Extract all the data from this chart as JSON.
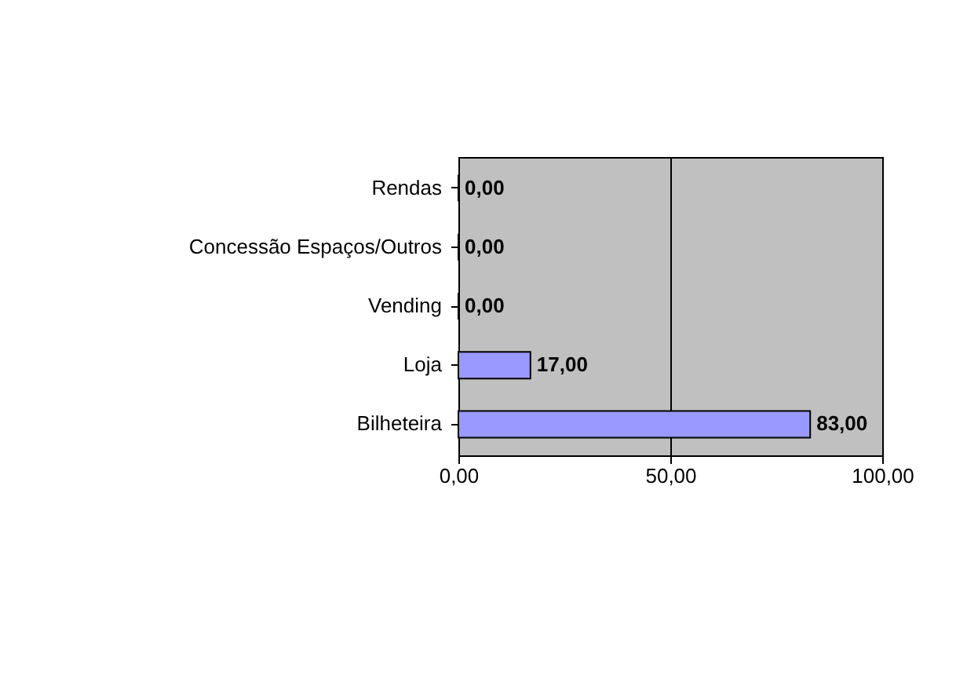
{
  "chart_data": {
    "type": "bar",
    "orientation": "horizontal",
    "categories": [
      "Rendas",
      "Concessão Espaços/Outros",
      "Vending",
      "Loja",
      "Bilheteira"
    ],
    "values": [
      0,
      0,
      0,
      17,
      83
    ],
    "value_labels": [
      "0,00",
      "0,00",
      "0,00",
      "17,00",
      "83,00"
    ],
    "color": "#9999ff",
    "xlim": [
      0,
      100
    ],
    "xticks": [
      {
        "value": 0,
        "label": "0,00"
      },
      {
        "value": 50,
        "label": "50,00"
      },
      {
        "value": 100,
        "label": "100,00"
      }
    ],
    "grid": "x"
  }
}
